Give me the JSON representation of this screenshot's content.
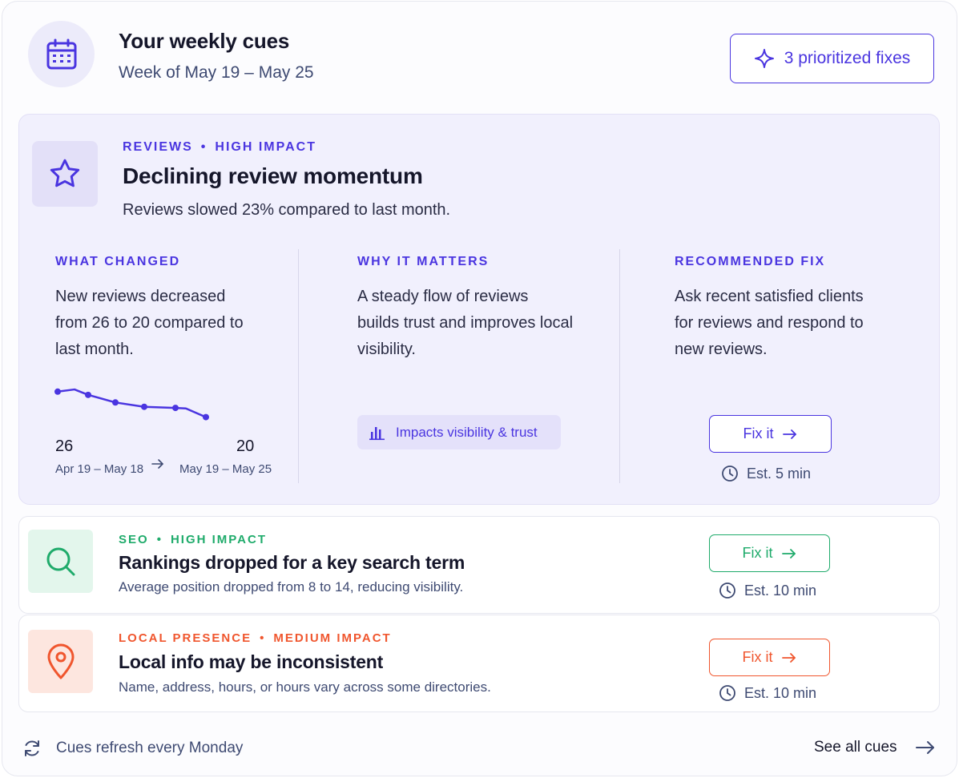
{
  "header": {
    "title": "Your weekly cues",
    "subtitle": "Week of May 19 – May 25",
    "fixes_button": "3 prioritized fixes",
    "icon": "calendar-icon"
  },
  "featured": {
    "category": "REVIEWS",
    "separator": "•",
    "impact": "HIGH IMPACT",
    "icon": "star-icon",
    "title": "Declining review momentum",
    "description": "Reviews slowed 23% compared to last month.",
    "what_changed": {
      "heading": "WHAT CHANGED",
      "text": "New reviews decreased from 26 to 20 compared to last month.",
      "from_value": "26",
      "to_value": "20",
      "from_range": "Apr 19 – May 18",
      "to_range": "May 19 – May 25",
      "trend": [
        26,
        26.4,
        25.4,
        24,
        23.2,
        23,
        22.9,
        21.3
      ]
    },
    "why_it_matters": {
      "heading": "WHY IT MATTERS",
      "text": "A steady flow of reviews builds trust and improves local visibility.",
      "pill": "Impacts visibility & trust"
    },
    "recommended_fix": {
      "heading": "RECOMMENDED FIX",
      "text": "Ask recent satisfied clients for reviews and respond to new reviews.",
      "button": "Fix it",
      "estimate": "Est. 5 min"
    },
    "accent": "#4a35e0"
  },
  "cues": [
    {
      "category": "SEO",
      "separator": "•",
      "impact": "HIGH IMPACT",
      "icon": "search-icon",
      "title": "Rankings dropped for a key search term",
      "description": "Average position dropped from 8 to 14, reducing visibility.",
      "button": "Fix it",
      "estimate": "Est. 10 min",
      "accent": "#1fab6b"
    },
    {
      "category": "LOCAL PRESENCE",
      "separator": "•",
      "impact": "MEDIUM IMPACT",
      "icon": "map-pin-icon",
      "title": "Local info may be inconsistent",
      "description": "Name, address, hours, or hours vary across some directories.",
      "button": "Fix it",
      "estimate": "Est. 10 min",
      "accent": "#f0562e"
    }
  ],
  "footer": {
    "refresh_text": "Cues refresh every Monday",
    "see_all": "See all cues"
  }
}
